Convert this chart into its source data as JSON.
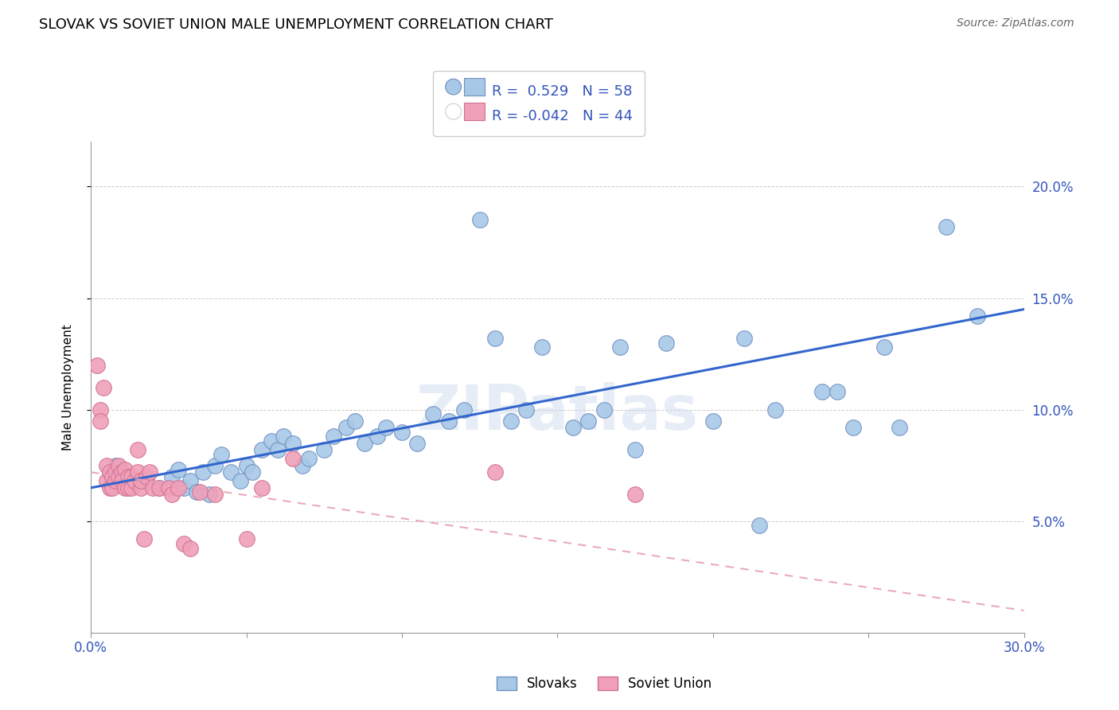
{
  "title": "SLOVAK VS SOVIET UNION MALE UNEMPLOYMENT CORRELATION CHART",
  "source": "Source: ZipAtlas.com",
  "ylabel": "Male Unemployment",
  "xlim": [
    0.0,
    0.3
  ],
  "ylim": [
    0.0,
    0.22
  ],
  "xticks": [
    0.0,
    0.05,
    0.1,
    0.15,
    0.2,
    0.25,
    0.3
  ],
  "xticklabels": [
    "0.0%",
    "",
    "",
    "",
    "",
    "",
    "30.0%"
  ],
  "yticks": [
    0.05,
    0.1,
    0.15,
    0.2
  ],
  "yticklabels": [
    "5.0%",
    "10.0%",
    "15.0%",
    "20.0%"
  ],
  "legend1_r": "0.529",
  "legend1_n": "58",
  "legend2_r": "-0.042",
  "legend2_n": "44",
  "legend1_label": "Slovaks",
  "legend2_label": "Soviet Union",
  "blue_color": "#a8c8e8",
  "pink_color": "#f0a0b8",
  "blue_edge_color": "#7090c0",
  "pink_edge_color": "#d07090",
  "blue_line_color": "#3366cc",
  "pink_line_color": "#e8a0b8",
  "watermark": "ZIPatlas",
  "title_fontsize": 13,
  "axis_label_fontsize": 11,
  "tick_fontsize": 12,
  "blue_dots_x": [
    0.008,
    0.012,
    0.018,
    0.022,
    0.026,
    0.028,
    0.03,
    0.032,
    0.034,
    0.036,
    0.038,
    0.04,
    0.042,
    0.045,
    0.048,
    0.05,
    0.052,
    0.055,
    0.058,
    0.06,
    0.062,
    0.065,
    0.068,
    0.07,
    0.075,
    0.078,
    0.082,
    0.085,
    0.088,
    0.092,
    0.095,
    0.1,
    0.105,
    0.11,
    0.115,
    0.12,
    0.125,
    0.13,
    0.135,
    0.14,
    0.145,
    0.155,
    0.16,
    0.165,
    0.17,
    0.175,
    0.185,
    0.2,
    0.21,
    0.215,
    0.22,
    0.235,
    0.24,
    0.245,
    0.255,
    0.26,
    0.275,
    0.285
  ],
  "blue_dots_y": [
    0.075,
    0.07,
    0.068,
    0.065,
    0.07,
    0.073,
    0.065,
    0.068,
    0.063,
    0.072,
    0.062,
    0.075,
    0.08,
    0.072,
    0.068,
    0.075,
    0.072,
    0.082,
    0.086,
    0.082,
    0.088,
    0.085,
    0.075,
    0.078,
    0.082,
    0.088,
    0.092,
    0.095,
    0.085,
    0.088,
    0.092,
    0.09,
    0.085,
    0.098,
    0.095,
    0.1,
    0.185,
    0.132,
    0.095,
    0.1,
    0.128,
    0.092,
    0.095,
    0.1,
    0.128,
    0.082,
    0.13,
    0.095,
    0.132,
    0.048,
    0.1,
    0.108,
    0.108,
    0.092,
    0.128,
    0.092,
    0.182,
    0.142
  ],
  "pink_dots_x": [
    0.002,
    0.003,
    0.003,
    0.004,
    0.005,
    0.005,
    0.006,
    0.006,
    0.007,
    0.007,
    0.008,
    0.008,
    0.009,
    0.009,
    0.01,
    0.01,
    0.011,
    0.011,
    0.012,
    0.012,
    0.013,
    0.013,
    0.014,
    0.015,
    0.015,
    0.016,
    0.016,
    0.017,
    0.018,
    0.019,
    0.02,
    0.022,
    0.025,
    0.026,
    0.028,
    0.03,
    0.032,
    0.035,
    0.04,
    0.05,
    0.055,
    0.065,
    0.13,
    0.175
  ],
  "pink_dots_y": [
    0.12,
    0.1,
    0.095,
    0.11,
    0.075,
    0.068,
    0.072,
    0.065,
    0.07,
    0.065,
    0.072,
    0.068,
    0.075,
    0.07,
    0.072,
    0.068,
    0.073,
    0.065,
    0.07,
    0.065,
    0.07,
    0.065,
    0.068,
    0.082,
    0.072,
    0.065,
    0.068,
    0.042,
    0.07,
    0.072,
    0.065,
    0.065,
    0.065,
    0.062,
    0.065,
    0.04,
    0.038,
    0.063,
    0.062,
    0.042,
    0.065,
    0.078,
    0.072,
    0.062
  ],
  "blue_trendline": [
    0.0,
    0.3,
    0.065,
    0.145
  ],
  "pink_trendline": [
    0.0,
    0.3,
    0.072,
    0.01
  ]
}
